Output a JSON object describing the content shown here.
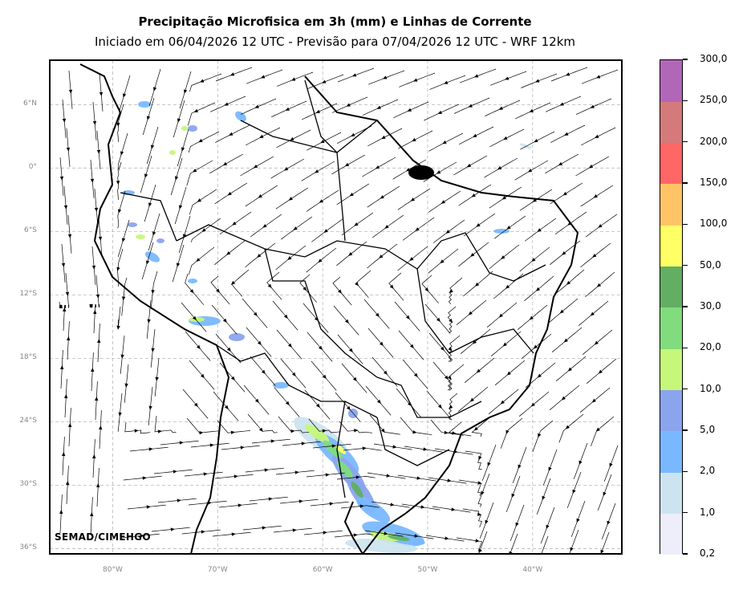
{
  "title": "Precipitação Microfisica em 3h (mm) e Linhas de Corrente",
  "subtitle": "Iniciado em 06/04/2026 12 UTC - Previsão para 07/04/2026 12 UTC - WRF 12km",
  "credit": "SEMAD/CIMEHGO",
  "lat_labels": [
    "6°N",
    "0°",
    "6°S",
    "12°S",
    "18°S",
    "24°S",
    "30°S",
    "36°S"
  ],
  "lon_labels": [
    "80°W",
    "70°W",
    "60°W",
    "50°W",
    "40°W"
  ],
  "map_extent": {
    "lon_min": -86,
    "lon_max": -31.5,
    "lat_min": -36.5,
    "lat_max": 10.2
  },
  "colorbar": {
    "labels": [
      "0,2",
      "1,0",
      "2,0",
      "5,0",
      "10,0",
      "20,0",
      "30,0",
      "50,0",
      "100,0",
      "150,0",
      "200,0",
      "250,0",
      "300,0"
    ],
    "colors": [
      "#eeeefa",
      "#cce4ef",
      "#79b8ff",
      "#8aa4ee",
      "#c6f77a",
      "#80dc7c",
      "#62ae62",
      "#ffff66",
      "#ffc466",
      "#ff6666",
      "#d47a7a",
      "#b266b8"
    ]
  },
  "colors": {
    "grid": "#b8b8b8",
    "border": "#000000",
    "streamline": "#000000"
  }
}
